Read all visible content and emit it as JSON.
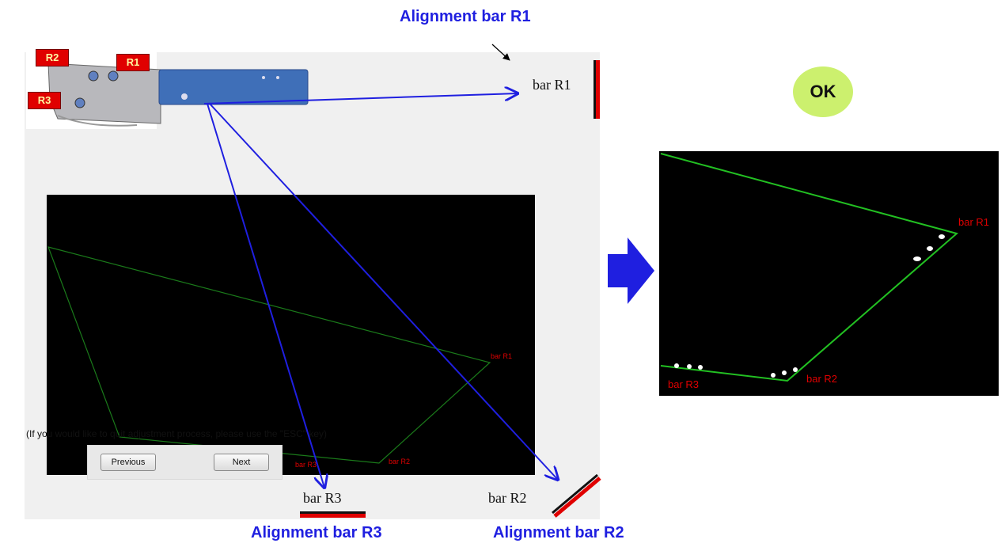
{
  "headings": {
    "r1": "Alignment bar R1",
    "r2": "Alignment bar R2",
    "r3": "Alignment bar R3"
  },
  "bar_labels": {
    "r1": "bar R1",
    "r2": "bar R2",
    "r3": "bar R3"
  },
  "screen_labels": {
    "r1": "bar R1",
    "r2": "bar R2",
    "r3": "bar R3"
  },
  "result_labels": {
    "r1": "bar R1",
    "r2": "bar R2",
    "r3": "bar R3"
  },
  "thumbnail_tags": {
    "r1": "R1",
    "r2": "R2",
    "r3": "R3"
  },
  "note": "(If you would like to quit adjustment  process, please use the \"ESC\" key)",
  "buttons": {
    "previous": "Previous",
    "next": "Next"
  },
  "status": "OK",
  "colors": {
    "arrow": "#1f1fe0",
    "outline": "#1a7a1a",
    "result_outline": "#22c022",
    "label_red": "#e00000",
    "ok_badge": "#ccf06e"
  }
}
